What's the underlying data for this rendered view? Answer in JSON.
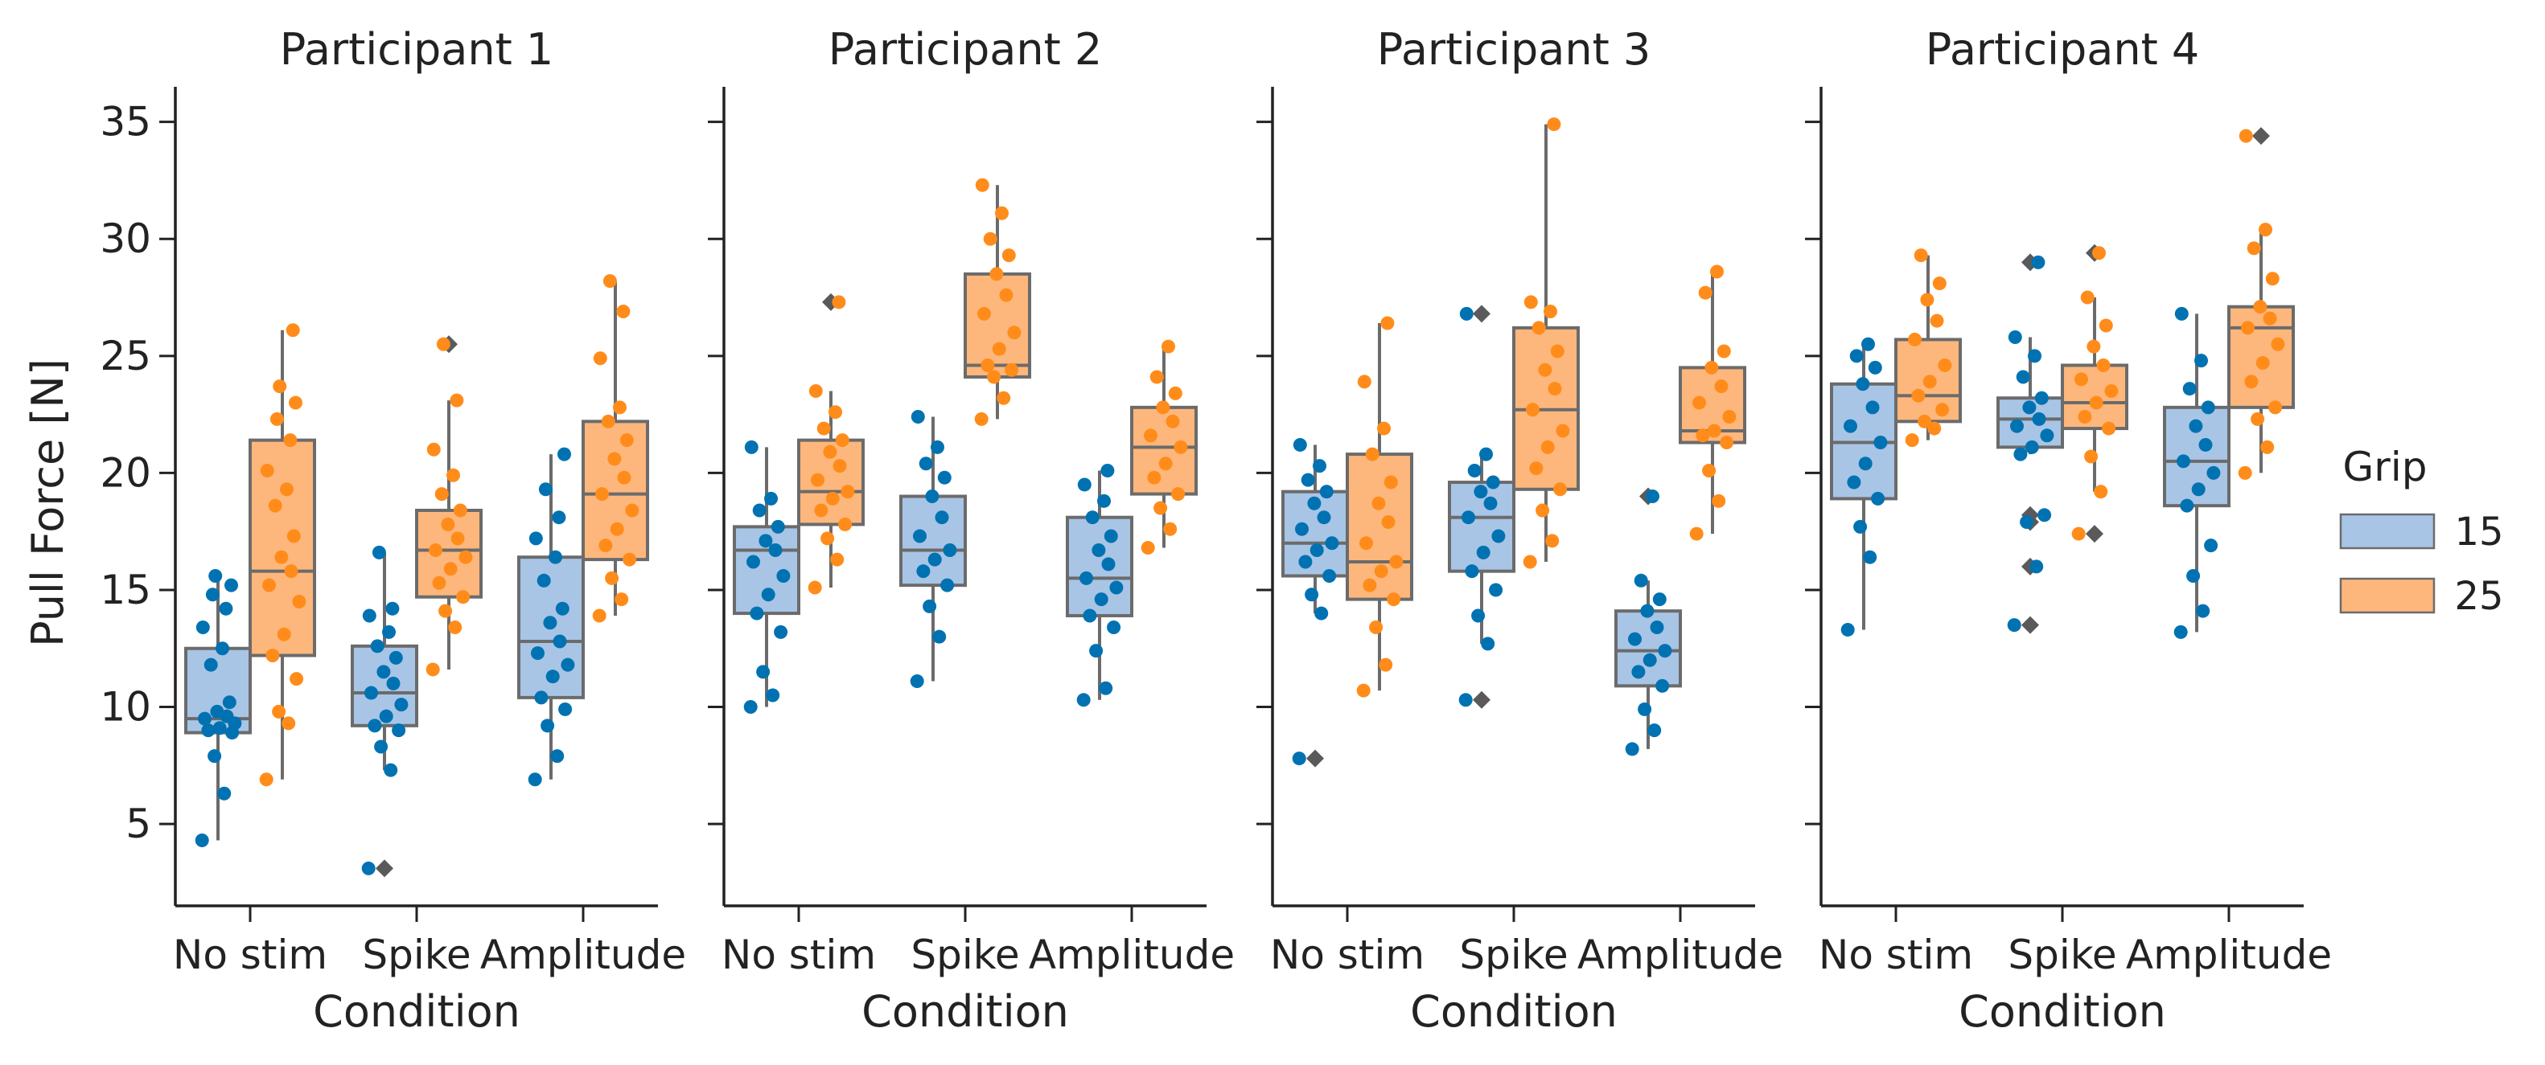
{
  "chart_data": {
    "type": "box",
    "xlabel": "Condition",
    "ylabel": "Pull Force [N]",
    "yticks": [
      5,
      10,
      15,
      20,
      25,
      30,
      35
    ],
    "ylim": [
      1.5,
      36.5
    ],
    "categories": [
      "No stim",
      "Spike",
      "Amplitude"
    ],
    "legend": {
      "title": "Grip",
      "position": "right",
      "entries": [
        {
          "label": "15",
          "color": "#1f77b4",
          "fill": "#a8c5e6",
          "point": "#0072b2"
        },
        {
          "label": "25",
          "color": "#ff7f0e",
          "fill": "#fdb77c",
          "point": "#ff8c1a"
        }
      ]
    },
    "panels": [
      {
        "title": "Participant 1",
        "groups": [
          {
            "condition": "No stim",
            "grip": "15",
            "q1": 8.9,
            "median": 9.5,
            "q3": 12.5,
            "whisker_low": 4.3,
            "whisker_high": 15.6,
            "outliers": [],
            "points": [
              4.3,
              6.3,
              7.9,
              8.9,
              9.0,
              9.1,
              9.3,
              9.5,
              9.6,
              9.8,
              10.2,
              11.8,
              12.5,
              13.4,
              14.2,
              14.8,
              15.2,
              15.6
            ]
          },
          {
            "condition": "No stim",
            "grip": "25",
            "q1": 12.2,
            "median": 15.8,
            "q3": 21.4,
            "whisker_low": 6.9,
            "whisker_high": 26.1,
            "outliers": [],
            "points": [
              6.9,
              9.3,
              9.8,
              11.2,
              12.2,
              13.1,
              14.5,
              15.2,
              15.8,
              16.4,
              17.3,
              18.6,
              19.3,
              20.1,
              21.4,
              22.3,
              23.0,
              23.7,
              26.1
            ]
          },
          {
            "condition": "Spike",
            "grip": "15",
            "q1": 9.2,
            "median": 10.6,
            "q3": 12.6,
            "whisker_low": 7.3,
            "whisker_high": 16.6,
            "outliers": [
              3.1
            ],
            "points": [
              3.1,
              7.3,
              8.3,
              9.0,
              9.2,
              9.6,
              10.1,
              10.6,
              11.0,
              11.5,
              12.1,
              12.6,
              13.2,
              13.9,
              14.2,
              16.6
            ]
          },
          {
            "condition": "Spike",
            "grip": "25",
            "q1": 14.7,
            "median": 16.7,
            "q3": 18.4,
            "whisker_low": 11.6,
            "whisker_high": 23.1,
            "outliers": [
              25.5
            ],
            "points": [
              11.6,
              13.4,
              14.1,
              14.7,
              15.3,
              15.9,
              16.4,
              16.7,
              17.2,
              17.8,
              18.4,
              19.1,
              19.9,
              21.0,
              23.1,
              25.5
            ]
          },
          {
            "condition": "Amplitude",
            "grip": "15",
            "q1": 10.4,
            "median": 12.8,
            "q3": 16.4,
            "whisker_low": 6.9,
            "whisker_high": 20.8,
            "outliers": [],
            "points": [
              6.9,
              7.9,
              9.2,
              9.9,
              10.4,
              11.3,
              11.8,
              12.3,
              12.8,
              13.6,
              14.2,
              15.4,
              16.4,
              17.2,
              18.1,
              19.3,
              20.8
            ]
          },
          {
            "condition": "Amplitude",
            "grip": "25",
            "q1": 16.3,
            "median": 19.1,
            "q3": 22.2,
            "whisker_low": 13.9,
            "whisker_high": 28.2,
            "outliers": [],
            "points": [
              13.9,
              14.6,
              15.5,
              16.3,
              16.9,
              17.6,
              18.4,
              19.1,
              19.8,
              20.6,
              21.4,
              22.2,
              22.8,
              24.9,
              26.9,
              28.2
            ]
          }
        ]
      },
      {
        "title": "Participant 2",
        "groups": [
          {
            "condition": "No stim",
            "grip": "15",
            "q1": 14.0,
            "median": 16.7,
            "q3": 17.7,
            "whisker_low": 10.0,
            "whisker_high": 21.1,
            "outliers": [],
            "points": [
              10.0,
              10.5,
              11.5,
              13.2,
              14.0,
              14.8,
              15.6,
              16.2,
              16.7,
              17.1,
              17.7,
              18.4,
              18.9,
              21.1
            ]
          },
          {
            "condition": "No stim",
            "grip": "25",
            "q1": 17.8,
            "median": 19.2,
            "q3": 21.4,
            "whisker_low": 15.1,
            "whisker_high": 23.5,
            "outliers": [
              27.3
            ],
            "points": [
              15.1,
              16.3,
              17.2,
              17.8,
              18.4,
              18.9,
              19.2,
              19.7,
              20.3,
              20.9,
              21.4,
              21.9,
              22.6,
              23.5,
              27.3
            ]
          },
          {
            "condition": "Spike",
            "grip": "15",
            "q1": 15.2,
            "median": 16.7,
            "q3": 19.0,
            "whisker_low": 11.1,
            "whisker_high": 22.4,
            "outliers": [],
            "points": [
              11.1,
              13.0,
              14.3,
              15.2,
              15.8,
              16.3,
              16.7,
              17.3,
              18.1,
              19.0,
              19.8,
              20.4,
              21.1,
              22.4
            ]
          },
          {
            "condition": "Spike",
            "grip": "25",
            "q1": 24.1,
            "median": 24.6,
            "q3": 28.5,
            "whisker_low": 22.3,
            "whisker_high": 32.3,
            "outliers": [],
            "points": [
              22.3,
              23.2,
              24.1,
              24.4,
              24.6,
              25.3,
              26.0,
              26.8,
              27.6,
              28.5,
              29.3,
              30.0,
              31.1,
              32.3
            ]
          },
          {
            "condition": "Amplitude",
            "grip": "15",
            "q1": 13.9,
            "median": 15.5,
            "q3": 18.1,
            "whisker_low": 10.3,
            "whisker_high": 20.1,
            "outliers": [],
            "points": [
              10.3,
              10.8,
              12.4,
              13.4,
              13.9,
              14.6,
              15.1,
              15.5,
              16.1,
              16.7,
              17.3,
              18.1,
              18.8,
              19.5,
              20.1
            ]
          },
          {
            "condition": "Amplitude",
            "grip": "25",
            "q1": 19.1,
            "median": 21.1,
            "q3": 22.8,
            "whisker_low": 16.8,
            "whisker_high": 25.4,
            "outliers": [],
            "points": [
              16.8,
              17.6,
              18.5,
              19.1,
              19.8,
              20.4,
              21.1,
              21.6,
              22.2,
              22.8,
              23.4,
              24.1,
              25.4
            ]
          }
        ]
      },
      {
        "title": "Participant 3",
        "groups": [
          {
            "condition": "No stim",
            "grip": "15",
            "q1": 15.6,
            "median": 17.0,
            "q3": 19.2,
            "whisker_low": 14.0,
            "whisker_high": 21.2,
            "outliers": [
              7.8
            ],
            "points": [
              7.8,
              14.0,
              14.8,
              15.6,
              16.2,
              16.7,
              17.0,
              17.6,
              18.1,
              18.7,
              19.2,
              19.7,
              20.3,
              21.2
            ]
          },
          {
            "condition": "No stim",
            "grip": "25",
            "q1": 14.6,
            "median": 16.2,
            "q3": 20.8,
            "whisker_low": 10.7,
            "whisker_high": 26.4,
            "outliers": [],
            "points": [
              10.7,
              11.8,
              13.4,
              14.6,
              15.2,
              15.8,
              16.2,
              17.0,
              17.9,
              18.7,
              19.6,
              20.8,
              21.9,
              23.9,
              26.4
            ]
          },
          {
            "condition": "Spike",
            "grip": "15",
            "q1": 15.8,
            "median": 18.1,
            "q3": 19.6,
            "whisker_low": 12.7,
            "whisker_high": 20.8,
            "outliers": [
              10.3,
              26.8
            ],
            "points": [
              10.3,
              12.7,
              13.9,
              15.0,
              15.8,
              16.6,
              17.3,
              18.1,
              18.7,
              19.2,
              19.6,
              20.1,
              20.8,
              26.8
            ]
          },
          {
            "condition": "Spike",
            "grip": "25",
            "q1": 19.3,
            "median": 22.7,
            "q3": 26.2,
            "whisker_low": 16.2,
            "whisker_high": 34.9,
            "outliers": [],
            "points": [
              16.2,
              17.1,
              18.4,
              19.3,
              20.2,
              21.1,
              21.8,
              22.7,
              23.6,
              24.4,
              25.2,
              26.2,
              26.9,
              27.3,
              34.9
            ]
          },
          {
            "condition": "Amplitude",
            "grip": "15",
            "q1": 10.9,
            "median": 12.4,
            "q3": 14.1,
            "whisker_low": 8.2,
            "whisker_high": 15.4,
            "outliers": [
              19.0
            ],
            "points": [
              8.2,
              9.0,
              9.9,
              10.9,
              11.5,
              12.0,
              12.4,
              12.9,
              13.4,
              14.1,
              14.6,
              15.4,
              19.0
            ]
          },
          {
            "condition": "Amplitude",
            "grip": "25",
            "q1": 21.3,
            "median": 21.8,
            "q3": 24.5,
            "whisker_low": 17.4,
            "whisker_high": 28.6,
            "outliers": [],
            "points": [
              17.4,
              18.8,
              20.1,
              21.3,
              21.6,
              21.8,
              22.4,
              23.0,
              23.7,
              24.5,
              25.2,
              27.7,
              28.6
            ]
          }
        ]
      },
      {
        "title": "Participant 4",
        "groups": [
          {
            "condition": "No stim",
            "grip": "15",
            "q1": 18.9,
            "median": 21.3,
            "q3": 23.8,
            "whisker_low": 13.3,
            "whisker_high": 25.5,
            "outliers": [],
            "points": [
              13.3,
              16.4,
              17.7,
              18.9,
              19.6,
              20.4,
              21.3,
              22.0,
              22.8,
              23.8,
              24.5,
              25.0,
              25.5
            ]
          },
          {
            "condition": "No stim",
            "grip": "25",
            "q1": 22.2,
            "median": 23.3,
            "q3": 25.7,
            "whisker_low": 21.4,
            "whisker_high": 29.3,
            "outliers": [],
            "points": [
              21.4,
              21.9,
              22.2,
              22.7,
              23.3,
              23.9,
              24.6,
              25.7,
              26.5,
              27.4,
              28.1,
              29.3
            ]
          },
          {
            "condition": "Spike",
            "grip": "15",
            "q1": 21.1,
            "median": 22.3,
            "q3": 23.2,
            "whisker_low": 20.8,
            "whisker_high": 25.8,
            "outliers": [
              13.5,
              16.0,
              17.9,
              18.2,
              29.0
            ],
            "points": [
              13.5,
              16.0,
              17.9,
              18.2,
              20.8,
              21.1,
              21.6,
              22.0,
              22.3,
              22.8,
              23.2,
              24.1,
              25.0,
              25.8,
              29.0
            ]
          },
          {
            "condition": "Spike",
            "grip": "25",
            "q1": 21.9,
            "median": 23.0,
            "q3": 24.6,
            "whisker_low": 19.2,
            "whisker_high": 27.5,
            "outliers": [
              17.4,
              29.4
            ],
            "points": [
              17.4,
              19.2,
              20.7,
              21.9,
              22.4,
              23.0,
              23.5,
              24.0,
              24.6,
              25.4,
              26.3,
              27.5,
              29.4
            ]
          },
          {
            "condition": "Amplitude",
            "grip": "15",
            "q1": 18.6,
            "median": 20.5,
            "q3": 22.8,
            "whisker_low": 13.2,
            "whisker_high": 26.8,
            "outliers": [],
            "points": [
              13.2,
              14.1,
              15.6,
              16.9,
              18.6,
              19.3,
              20.0,
              20.5,
              21.2,
              22.0,
              22.8,
              23.6,
              24.8,
              26.8
            ]
          },
          {
            "condition": "Amplitude",
            "grip": "25",
            "q1": 22.8,
            "median": 26.2,
            "q3": 27.1,
            "whisker_low": 20.0,
            "whisker_high": 30.4,
            "outliers": [
              34.4
            ],
            "points": [
              20.0,
              21.1,
              22.3,
              22.8,
              23.9,
              24.7,
              25.5,
              26.2,
              26.6,
              27.1,
              28.3,
              29.6,
              30.4,
              34.4
            ]
          }
        ]
      }
    ]
  }
}
